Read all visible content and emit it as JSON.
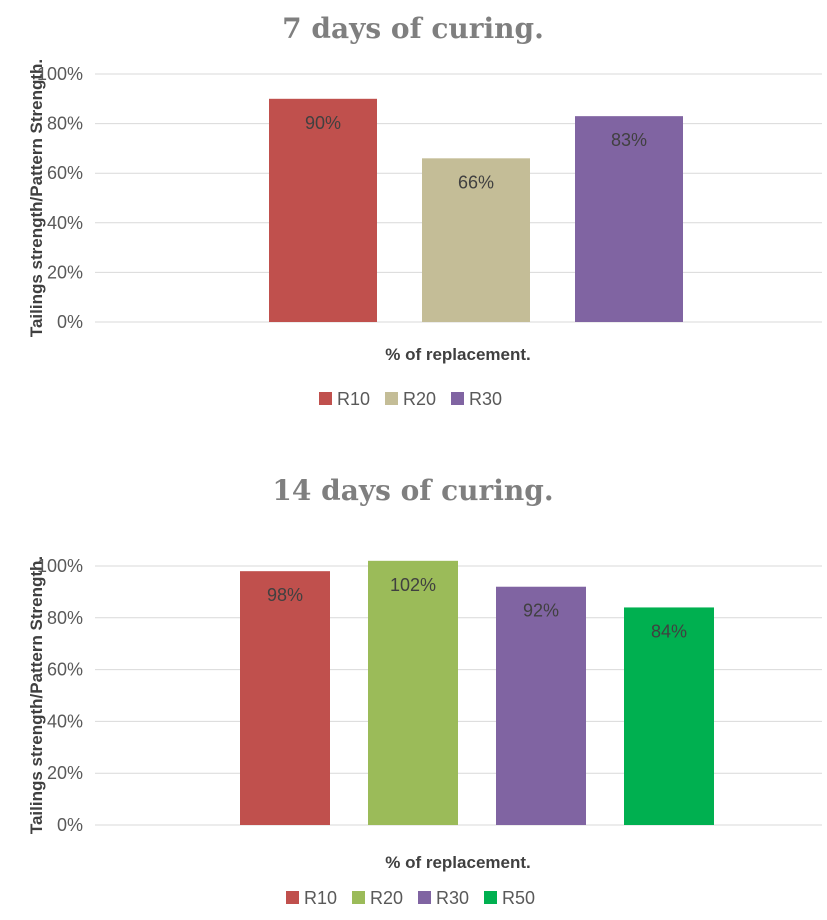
{
  "chart_data": [
    {
      "type": "bar",
      "title": "7 days of curing.",
      "xlabel": "% of replacement.",
      "ylabel": "Tailings strength/Pattern Strength.",
      "ylim": [
        0,
        100
      ],
      "yticks": [
        "0%",
        "20%",
        "40%",
        "60%",
        "80%",
        "100%"
      ],
      "grid": true,
      "legend_position": "bottom",
      "series": [
        {
          "name": "R10",
          "value": 90,
          "label": "90%",
          "color": "#c0504d"
        },
        {
          "name": "R20",
          "value": 66,
          "label": "66%",
          "color": "#c4bd97"
        },
        {
          "name": "R30",
          "value": 83,
          "label": "83%",
          "color": "#8064a2"
        }
      ]
    },
    {
      "type": "bar",
      "title": "14 days of curing.",
      "xlabel": "% of replacement.",
      "ylabel": "Tailings strength/Pattern Strength.",
      "ylim": [
        0,
        100
      ],
      "yticks": [
        "0%",
        "20%",
        "40%",
        "60%",
        "80%",
        "100%"
      ],
      "grid": true,
      "legend_position": "bottom",
      "series": [
        {
          "name": "R10",
          "value": 98,
          "label": "98%",
          "color": "#c0504d"
        },
        {
          "name": "R20",
          "value": 102,
          "label": "102%",
          "color": "#9bbb59"
        },
        {
          "name": "R30",
          "value": 92,
          "label": "92%",
          "color": "#8064a2"
        },
        {
          "name": "R50",
          "value": 84,
          "label": "84%",
          "color": "#00b050"
        }
      ]
    }
  ]
}
